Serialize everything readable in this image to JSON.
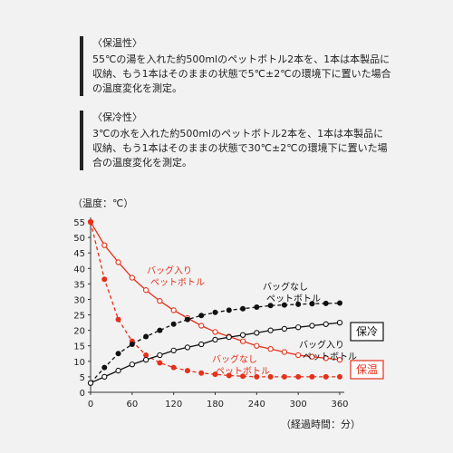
{
  "notes": {
    "keep_warm": {
      "title": "〈保温性〉",
      "text": "55℃の湯を入れた約500mlのペットボトル2本を、1本は本製品に収納、もう1本はそのままの状態で5℃±2℃の環境下に置いた場合の温度変化を測定。"
    },
    "keep_cold": {
      "title": "〈保冷性〉",
      "text": "3℃の水を入れた約500mlのペットボトル2本を、1本は本製品に収納、もう1本はそのままの状態で30℃±2℃の環境下に置いた場合の温度変化を測定。"
    }
  },
  "colors": {
    "warm": "#e5301a",
    "cold": "#111111",
    "axis": "#333333"
  },
  "chart_data": {
    "type": "line",
    "ylabel": "（温度：℃）",
    "xlabel": "（経過時間：分）",
    "xlim": [
      0,
      360
    ],
    "ylim": [
      0,
      55
    ],
    "xticks": [
      0,
      60,
      120,
      180,
      240,
      300,
      360
    ],
    "yticks": [
      0,
      5,
      10,
      15,
      20,
      25,
      30,
      35,
      40,
      45,
      50,
      55
    ],
    "grid": false,
    "group_labels": {
      "cold": "保冷",
      "warm": "保温"
    },
    "series": [
      {
        "name": "バッグ入り ペットボトル",
        "group": "warm",
        "style": "solid-open",
        "label_lines": [
          "バッグ入り",
          "ペットボトル"
        ],
        "x": [
          0,
          20,
          40,
          60,
          80,
          100,
          120,
          140,
          160,
          180,
          200,
          220,
          240,
          260,
          280,
          300,
          320,
          340,
          360
        ],
        "y": [
          55,
          47.5,
          42,
          37,
          33,
          29.5,
          26.5,
          24,
          21.5,
          19.5,
          18,
          16.5,
          15,
          14,
          13,
          12,
          11.5,
          11,
          10.5
        ]
      },
      {
        "name": "バッグなし ペットボトル",
        "group": "warm",
        "style": "dashed-filled",
        "label_lines": [
          "バッグなし",
          "ペットボトル"
        ],
        "x": [
          0,
          20,
          40,
          60,
          80,
          100,
          120,
          140,
          160,
          180,
          200,
          220,
          240,
          260,
          280,
          300,
          320,
          340,
          360
        ],
        "y": [
          55,
          36.5,
          23.5,
          16.5,
          12,
          9.5,
          8,
          7,
          6.2,
          5.8,
          5.4,
          5.2,
          5,
          5,
          5,
          5,
          5,
          5,
          5
        ]
      },
      {
        "name": "バッグなし ペットボトル",
        "group": "cold",
        "style": "dashed-filled",
        "label_lines": [
          "バッグなし",
          "ペットボトル"
        ],
        "x": [
          0,
          20,
          40,
          60,
          80,
          100,
          120,
          140,
          160,
          180,
          200,
          220,
          240,
          260,
          280,
          300,
          320,
          340,
          360
        ],
        "y": [
          3,
          8,
          12.5,
          15.5,
          18,
          20,
          22,
          23.5,
          24.8,
          25.8,
          26.5,
          27,
          27.5,
          28,
          28.2,
          28.4,
          28.6,
          28.7,
          28.8
        ]
      },
      {
        "name": "バッグ入り ペットボトル",
        "group": "cold",
        "style": "solid-open",
        "label_lines": [
          "バッグ入り",
          "ペットボトル"
        ],
        "x": [
          0,
          20,
          40,
          60,
          80,
          100,
          120,
          140,
          160,
          180,
          200,
          220,
          240,
          260,
          280,
          300,
          320,
          340,
          360
        ],
        "y": [
          3,
          5,
          7,
          9,
          10.5,
          12,
          13.5,
          14.5,
          15.5,
          17,
          17.8,
          18.5,
          19.2,
          20,
          20.5,
          21,
          21.5,
          22,
          22.5
        ]
      }
    ]
  }
}
